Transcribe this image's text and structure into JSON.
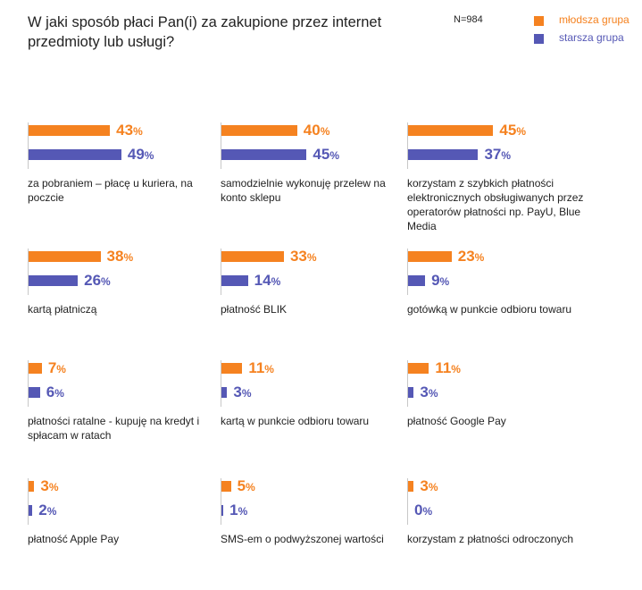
{
  "chart_data": {
    "type": "bar",
    "title": "W jaki sposób płaci Pan(i) za zakupione przez internet przedmioty lub usługi?",
    "n_label": "N=984",
    "unit": "%",
    "colors": {
      "mlodsza": "#f58220",
      "starsza": "#5558b5"
    },
    "series": [
      {
        "name": "młodsza grupa",
        "key": "mlodsza"
      },
      {
        "name": "starsza grupa",
        "key": "starsza"
      }
    ],
    "categories": [
      "za pobraniem – płacę u kuriera, na poczcie",
      "samodzielnie wykonuję przelew na konto sklepu",
      "korzystam z szybkich płatności elektronicznych obsługiwanych przez operatorów płatności np. PayU, Blue Media",
      "kartą płatniczą",
      "płatność BLIK",
      "gotówką w punkcie odbioru towaru",
      "płatności ratalne - kupuję na kredyt i spłacam w ratach",
      "kartą w punkcie odbioru towaru",
      "płatność Google Pay",
      "płatność Apple Pay",
      "SMS-em o podwyższonej wartości",
      "korzystam z płatności odroczonych"
    ],
    "values_mlodsza": [
      43,
      40,
      45,
      38,
      33,
      23,
      7,
      11,
      11,
      3,
      5,
      3
    ],
    "values_starsza": [
      49,
      45,
      37,
      26,
      14,
      9,
      6,
      3,
      3,
      2,
      1,
      0
    ],
    "xlim": [
      0,
      50
    ],
    "grid": false,
    "legend_position": "top-right"
  }
}
